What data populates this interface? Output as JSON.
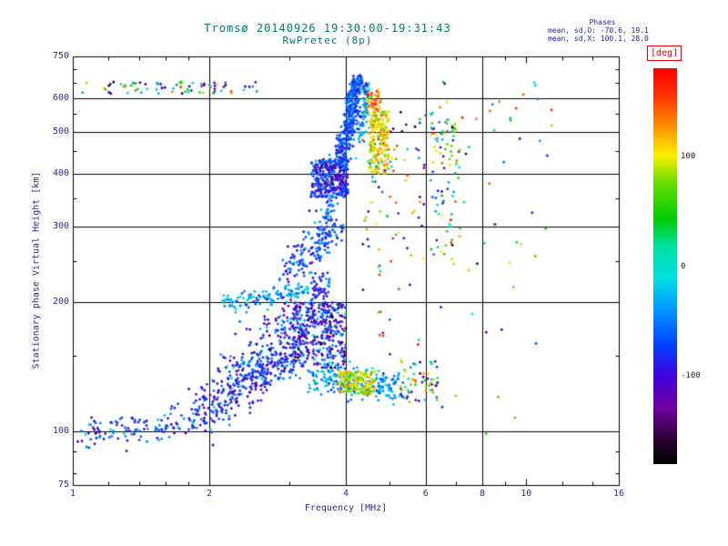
{
  "title": "Tromsø 20140926 19:30:00-19:31:43",
  "subtitle": "RwPretec (8p)",
  "stats": {
    "header": "Phases",
    "o_line": "mean, sd,O: -70.6, 19.1",
    "x_line": "mean, sd,X: 100.1, 28.0"
  },
  "colors": {
    "title_color": "#007878",
    "axis_text_color": "#2a2a9a",
    "stats_color": "#2222aa",
    "deg_color": "#ee0000",
    "cb_tick_color": "#222222",
    "grid_color": "#000000",
    "background": "#ffffff"
  },
  "chart_data": {
    "type": "scatter",
    "title": "Tromsø 20140926 19:30:00-19:31:43  RwPretec (8p)",
    "xlabel": "Frequency [MHz]",
    "ylabel": "Stationary phase Virtual Height [km]",
    "xscale": "log",
    "yscale": "log",
    "xlim": [
      1,
      16
    ],
    "ylim": [
      75,
      750
    ],
    "xticks": [
      1,
      2,
      4,
      6,
      8,
      10,
      16
    ],
    "yticks": [
      750,
      600,
      500,
      400,
      300,
      200,
      100,
      75
    ],
    "xticks_minor": [
      1.2,
      1.4,
      1.6,
      1.8,
      3,
      5,
      7,
      9,
      12,
      14
    ],
    "yticks_minor": [
      80,
      90,
      150,
      250,
      350,
      450,
      550,
      650,
      700
    ],
    "x_gridlines": [
      2,
      4,
      6,
      8
    ],
    "y_gridlines": [
      600,
      500,
      400,
      300,
      200,
      100
    ],
    "grid": true,
    "colorbar": {
      "label": "[deg]",
      "ticks": [
        100,
        0,
        -100
      ],
      "range": [
        -180,
        180
      ],
      "stops": [
        {
          "t": 0.0,
          "c": "#000000"
        },
        {
          "t": 0.06,
          "c": "#2a0030"
        },
        {
          "t": 0.14,
          "c": "#6e00a0"
        },
        {
          "t": 0.22,
          "c": "#4400dd"
        },
        {
          "t": 0.3,
          "c": "#0040ff"
        },
        {
          "t": 0.4,
          "c": "#00a0ff"
        },
        {
          "t": 0.47,
          "c": "#00e0e0"
        },
        {
          "t": 0.55,
          "c": "#00e0a0"
        },
        {
          "t": 0.62,
          "c": "#00cc00"
        },
        {
          "t": 0.71,
          "c": "#66dd00"
        },
        {
          "t": 0.78,
          "c": "#ffee00"
        },
        {
          "t": 0.86,
          "c": "#ff8800"
        },
        {
          "t": 0.93,
          "c": "#ff3300"
        },
        {
          "t": 1.0,
          "c": "#ff0000"
        }
      ]
    },
    "points_encoding": "procedural-clusters (dense ionogram echo traces approximated; phase in deg sets color)",
    "clusters": [
      {
        "name": "top-band",
        "mode": "blob",
        "f": [
          1.05,
          2.55
        ],
        "h": [
          612,
          655
        ],
        "n": 75,
        "phase": {
          "uniform": [
            -170,
            170
          ]
        }
      },
      {
        "name": "f-trace-base",
        "mode": "blob",
        "f": [
          3.35,
          4.05
        ],
        "h": [
          352,
          432
        ],
        "n": 300,
        "phase": {
          "gauss": [
            -75,
            22
          ]
        }
      },
      {
        "name": "f-trace-base-dark",
        "mode": "blob",
        "f": [
          3.4,
          3.95
        ],
        "h": [
          360,
          420
        ],
        "n": 50,
        "phase": {
          "gauss": [
            -125,
            18
          ]
        }
      },
      {
        "name": "f-trace-mid",
        "mode": "diag",
        "f": [
          3.88,
          4.18
        ],
        "h": [
          425,
          570
        ],
        "jf": 0.02,
        "jh": 16,
        "n": 230,
        "phase": {
          "gauss": [
            -70,
            20
          ]
        }
      },
      {
        "name": "f-trace-top",
        "mode": "diag",
        "f": [
          4.05,
          4.28
        ],
        "h": [
          570,
          662
        ],
        "jf": 0.015,
        "jh": 12,
        "n": 140,
        "phase": {
          "gauss": [
            -62,
            25
          ]
        }
      },
      {
        "name": "f-trace-right-strand",
        "mode": "diag",
        "f": [
          4.33,
          4.47
        ],
        "h": [
          488,
          650
        ],
        "jf": 0.012,
        "jh": 14,
        "n": 80,
        "phase": {
          "gauss": [
            -50,
            30
          ]
        }
      },
      {
        "name": "x-trace",
        "mode": "blob",
        "f": [
          4.5,
          4.98
        ],
        "h": [
          398,
          558
        ],
        "n": 210,
        "phase": {
          "gauss": [
            103,
            24
          ]
        }
      },
      {
        "name": "x-trace-top",
        "mode": "blob",
        "f": [
          4.45,
          4.78
        ],
        "h": [
          558,
          628
        ],
        "n": 45,
        "phase": {
          "gauss": [
            128,
            28
          ]
        }
      },
      {
        "name": "sporadic-6-7",
        "mode": "blob",
        "f": [
          6.15,
          7.15
        ],
        "h": [
          245,
          565
        ],
        "n": 60,
        "phase": {
          "gauss": [
            80,
            70
          ]
        }
      },
      {
        "name": "sporadic-6-7-blue",
        "mode": "blob",
        "f": [
          6.2,
          7.0
        ],
        "h": [
          260,
          540
        ],
        "n": 25,
        "phase": {
          "gauss": [
            -60,
            50
          ]
        }
      },
      {
        "name": "mid-diag",
        "mode": "diag",
        "f": [
          2.95,
          3.85
        ],
        "h": [
          235,
          300
        ],
        "jf": 0.03,
        "jh": 13,
        "n": 160,
        "phase": {
          "gauss": [
            -70,
            28
          ]
        }
      },
      {
        "name": "mid-diag-upper",
        "mode": "diag",
        "f": [
          3.45,
          3.8
        ],
        "h": [
          300,
          350
        ],
        "jf": 0.02,
        "jh": 10,
        "n": 40,
        "phase": {
          "gauss": [
            -55,
            30
          ]
        }
      },
      {
        "name": "band-200",
        "mode": "diag",
        "f": [
          2.15,
          3.3
        ],
        "h": [
          198,
          213
        ],
        "jf": 0.02,
        "jh": 5,
        "n": 120,
        "phase": {
          "gauss": [
            -35,
            22
          ]
        }
      },
      {
        "name": "lower-diag",
        "mode": "diag",
        "f": [
          1.9,
          3.15
        ],
        "h": [
          112,
          150
        ],
        "jf": 0.035,
        "jh": 8,
        "n": 300,
        "phase": {
          "gauss": [
            -85,
            30
          ]
        }
      },
      {
        "name": "lower-wedge",
        "mode": "diag",
        "f": [
          2.2,
          3.1
        ],
        "h": [
          128,
          185
        ],
        "jf": 0.04,
        "jh": 13,
        "n": 160,
        "phase": {
          "gauss": [
            -85,
            35
          ]
        }
      },
      {
        "name": "lower-blob",
        "mode": "blob",
        "f": [
          3.05,
          4.0
        ],
        "h": [
          140,
          200
        ],
        "n": 380,
        "phase": {
          "gauss": [
            -90,
            40
          ]
        }
      },
      {
        "name": "lower-spur",
        "mode": "blob",
        "f": [
          3.35,
          3.68
        ],
        "h": [
          198,
          235
        ],
        "n": 55,
        "phase": {
          "gauss": [
            -78,
            30
          ]
        }
      },
      {
        "name": "band-130-cyan",
        "mode": "diag",
        "f": [
          3.4,
          5.3
        ],
        "h": [
          133,
          127
        ],
        "jf": 0.02,
        "jh": 5,
        "n": 230,
        "phase": {
          "gauss": [
            -35,
            25
          ]
        }
      },
      {
        "name": "band-130-orange",
        "mode": "blob",
        "f": [
          3.85,
          4.65
        ],
        "h": [
          122,
          138
        ],
        "n": 170,
        "phase": {
          "gauss": [
            95,
            24
          ]
        }
      },
      {
        "name": "band-130-tail",
        "mode": "blob",
        "f": [
          5.25,
          6.4
        ],
        "h": [
          117,
          147
        ],
        "n": 65,
        "phase": {
          "uniform": [
            -150,
            150
          ]
        }
      },
      {
        "name": "e-trace",
        "mode": "diag",
        "f": [
          1.05,
          2.0
        ],
        "h": [
          99,
          107
        ],
        "jf": 0.05,
        "jh": 4,
        "n": 140,
        "phase": {
          "gauss": [
            -70,
            32
          ]
        }
      },
      {
        "name": "sparse-right",
        "mode": "blob",
        "f": [
          6.0,
          11.5
        ],
        "h": [
          95,
          655
        ],
        "n": 60,
        "phase": {
          "uniform": [
            -170,
            170
          ]
        }
      },
      {
        "name": "sparse-mid",
        "mode": "blob",
        "f": [
          4.35,
          6.0
        ],
        "h": [
          150,
          560
        ],
        "n": 85,
        "phase": {
          "uniform": [
            -170,
            170
          ]
        }
      }
    ]
  }
}
